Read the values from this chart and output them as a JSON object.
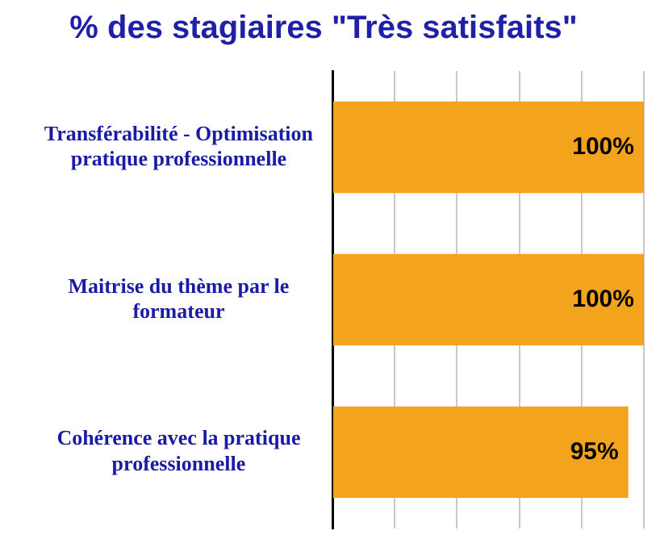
{
  "chart_data": {
    "type": "bar",
    "orientation": "horizontal",
    "title": "% des stagiaires \"Très satisfaits\"",
    "categories": [
      "Transférabilité - Optimisation pratique professionnelle",
      "Maitrise du thème par le formateur",
      "Cohérence avec la pratique professionnelle"
    ],
    "values": [
      100,
      100,
      95
    ],
    "value_labels": [
      "100%",
      "100%",
      "95%"
    ],
    "color": "#f4a41c",
    "xlim": [
      0,
      100
    ],
    "xticks": [
      {
        "value": 0,
        "label": null
      },
      {
        "value": 20,
        "label": null
      },
      {
        "value": 40,
        "label": null
      },
      {
        "value": 60,
        "label": null
      },
      {
        "value": 80,
        "label": null
      },
      {
        "value": 100,
        "label": null
      }
    ],
    "grid": "x",
    "legend": false,
    "tick_labels": "y"
  }
}
